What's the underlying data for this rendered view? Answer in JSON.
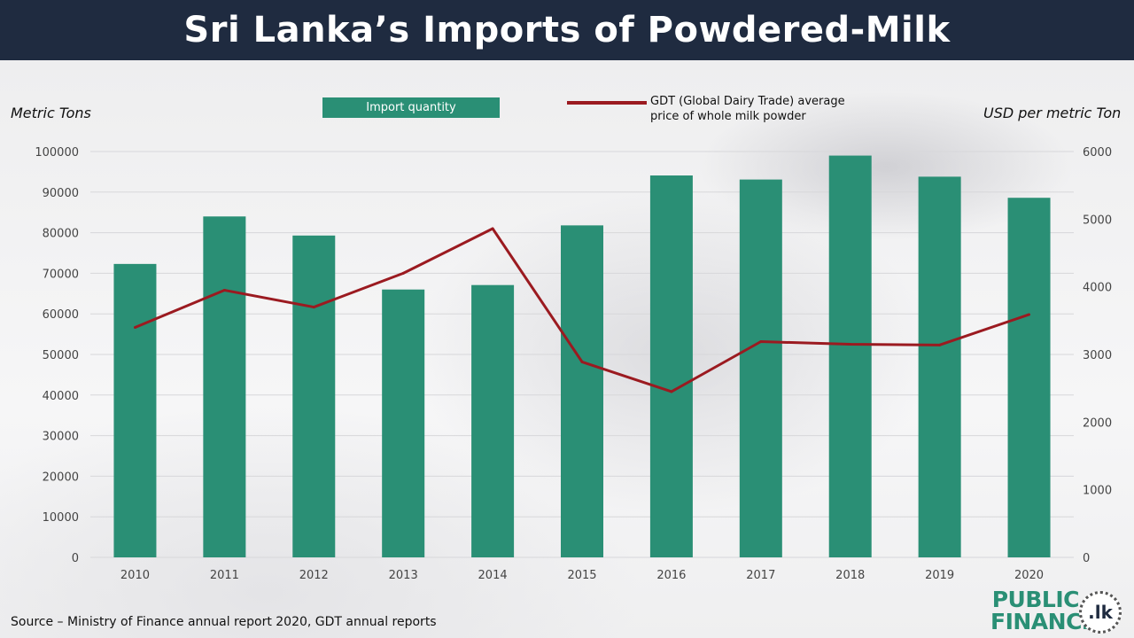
{
  "title": "Sri Lanka’s Imports of Powdered-Milk",
  "source": "Source – Ministry of Finance annual report 2020, GDT annual reports",
  "logo": {
    "line1": "PUBLIC",
    "line2": "FINANCE",
    "badge": ".lk"
  },
  "chart_data": {
    "type": "bar",
    "categories": [
      "2010",
      "2011",
      "2012",
      "2013",
      "2014",
      "2015",
      "2016",
      "2017",
      "2018",
      "2019",
      "2020"
    ],
    "series": [
      {
        "name": "Import quantity",
        "type": "bar",
        "axis": "left",
        "color": "#2a8f75",
        "values": [
          72300,
          84000,
          79300,
          66000,
          67100,
          81800,
          94100,
          93100,
          99000,
          93800,
          88600
        ]
      },
      {
        "name": "GDT (Global Dairy Trade) average price of whole milk powder",
        "type": "line",
        "axis": "right",
        "color": "#9b1a20",
        "values": [
          3400,
          3950,
          3700,
          4200,
          4860,
          2890,
          2450,
          3190,
          3150,
          3140,
          3590
        ]
      }
    ],
    "ylabel": "Metric Tons",
    "y2label": "USD per metric Ton",
    "ylim": [
      0,
      100000
    ],
    "y2lim": [
      0,
      6000
    ],
    "yticks": [
      "0",
      "10000",
      "20000",
      "30000",
      "40000",
      "50000",
      "60000",
      "70000",
      "80000",
      "90000",
      "100000"
    ],
    "y2ticks": [
      "0",
      "1000",
      "2000",
      "3000",
      "4000",
      "5000",
      "6000"
    ],
    "grid": true,
    "legend": "top"
  }
}
